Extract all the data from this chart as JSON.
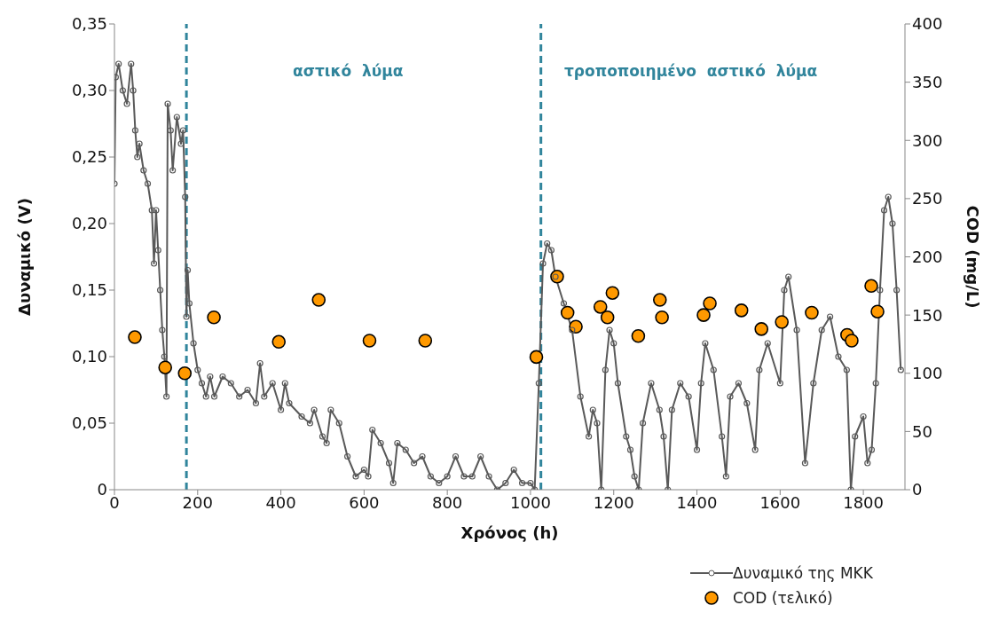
{
  "chart_data": {
    "type": "line",
    "xlabel": "Χρόνος (h)",
    "ylabel": "Δυναμικό (V)",
    "y2label": "COD (mg/L)",
    "xlim": [
      0,
      1900
    ],
    "xticks": [
      0,
      200,
      400,
      600,
      800,
      1000,
      1200,
      1400,
      1600,
      1800
    ],
    "ylim": [
      0,
      0.35
    ],
    "yticks": [
      0,
      {
        "value": 0.05,
        "label": "0,05"
      },
      {
        "value": 0.1,
        "label": "0,10"
      },
      {
        "value": 0.15,
        "label": "0,15"
      },
      {
        "value": 0.2,
        "label": "0,20"
      },
      {
        "value": 0.25,
        "label": "0,25"
      },
      {
        "value": 0.3,
        "label": "0,30"
      },
      {
        "value": 0.35,
        "label": "0,35"
      }
    ],
    "y2lim": [
      0,
      400
    ],
    "y2ticks": [
      0,
      50,
      100,
      150,
      200,
      250,
      300,
      350,
      400
    ],
    "grid": false,
    "legend": "bottom right",
    "line_style": "solid",
    "ref_lines": [
      {
        "axis": "x",
        "value": 173,
        "label": null,
        "color": "#31859c",
        "line_style": "dashed"
      },
      {
        "axis": "x",
        "value": 1025,
        "label": null,
        "color": "#31859c",
        "line_style": "dashed"
      }
    ],
    "annotations": [
      "αστικό  λύμα",
      "τροποποιημένο  αστικό  λύμα"
    ],
    "series": [
      {
        "name": "Δυναμικό της ΜΚΚ",
        "marker": "circle",
        "color": "#595959",
        "x": [
          0,
          3,
          10,
          20,
          30,
          40,
          45,
          50,
          55,
          60,
          70,
          80,
          90,
          95,
          100,
          105,
          110,
          115,
          120,
          125,
          128,
          135,
          140,
          150,
          160,
          165,
          170,
          173,
          176,
          180,
          190,
          200,
          210,
          220,
          230,
          240,
          260,
          280,
          300,
          320,
          340,
          350,
          360,
          380,
          400,
          410,
          420,
          450,
          470,
          480,
          500,
          510,
          520,
          540,
          560,
          580,
          600,
          610,
          620,
          640,
          660,
          670,
          680,
          700,
          720,
          740,
          760,
          780,
          800,
          820,
          840,
          860,
          880,
          900,
          920,
          940,
          960,
          980,
          1000,
          1010,
          1020,
          1030,
          1040,
          1050,
          1060,
          1080,
          1100,
          1120,
          1140,
          1150,
          1160,
          1170,
          1180,
          1190,
          1200,
          1210,
          1230,
          1240,
          1250,
          1260,
          1270,
          1290,
          1310,
          1320,
          1330,
          1340,
          1360,
          1380,
          1400,
          1410,
          1420,
          1440,
          1460,
          1470,
          1480,
          1500,
          1520,
          1540,
          1550,
          1570,
          1600,
          1610,
          1620,
          1640,
          1660,
          1680,
          1700,
          1720,
          1740,
          1760,
          1770,
          1780,
          1800,
          1810,
          1820,
          1830,
          1840,
          1850,
          1860,
          1870,
          1880,
          1890
        ],
        "values": [
          0.23,
          0.31,
          0.32,
          0.3,
          0.29,
          0.32,
          0.3,
          0.27,
          0.25,
          0.26,
          0.24,
          0.23,
          0.21,
          0.17,
          0.21,
          0.18,
          0.15,
          0.12,
          0.1,
          0.07,
          0.29,
          0.27,
          0.24,
          0.28,
          0.26,
          0.27,
          0.22,
          0.13,
          0.165,
          0.14,
          0.11,
          0.09,
          0.08,
          0.07,
          0.085,
          0.07,
          0.085,
          0.08,
          0.07,
          0.075,
          0.065,
          0.095,
          0.07,
          0.08,
          0.06,
          0.08,
          0.065,
          0.055,
          0.05,
          0.06,
          0.04,
          0.035,
          0.06,
          0.05,
          0.025,
          0.01,
          0.015,
          0.01,
          0.045,
          0.035,
          0.02,
          0.005,
          0.035,
          0.03,
          0.02,
          0.025,
          0.01,
          0.005,
          0.01,
          0.025,
          0.01,
          0.01,
          0.025,
          0.01,
          0,
          0.005,
          0.015,
          0.005,
          0.005,
          0,
          0.08,
          0.17,
          0.185,
          0.18,
          0.16,
          0.14,
          0.12,
          0.07,
          0.04,
          0.06,
          0.05,
          0,
          0.09,
          0.12,
          0.11,
          0.08,
          0.04,
          0.03,
          0.01,
          0,
          0.05,
          0.08,
          0.06,
          0.04,
          0,
          0.06,
          0.08,
          0.07,
          0.03,
          0.08,
          0.11,
          0.09,
          0.04,
          0.01,
          0.07,
          0.08,
          0.065,
          0.03,
          0.09,
          0.11,
          0.08,
          0.15,
          0.16,
          0.12,
          0.02,
          0.08,
          0.12,
          0.13,
          0.1,
          0.09,
          0,
          0.04,
          0.055,
          0.02,
          0.03,
          0.08,
          0.15,
          0.21,
          0.22,
          0.2,
          0.15,
          0.09
        ]
      },
      {
        "name": "COD (τελικό)",
        "type": "scatter",
        "marker": "circle",
        "axis": "y2",
        "color": "#ff9900",
        "x": [
          49,
          122,
          169,
          239,
          395,
          491,
          613,
          747,
          1014,
          1064,
          1089,
          1109,
          1168,
          1185,
          1197,
          1259,
          1311,
          1316,
          1416,
          1431,
          1507,
          1555,
          1604,
          1676,
          1761,
          1772,
          1819,
          1834
        ],
        "values": [
          131,
          105,
          100,
          148,
          127,
          163,
          128,
          128,
          114,
          183,
          152,
          140,
          157,
          148,
          169,
          132,
          163,
          148,
          150,
          160,
          154,
          138,
          144,
          152,
          133,
          128,
          175,
          153
        ]
      }
    ]
  }
}
